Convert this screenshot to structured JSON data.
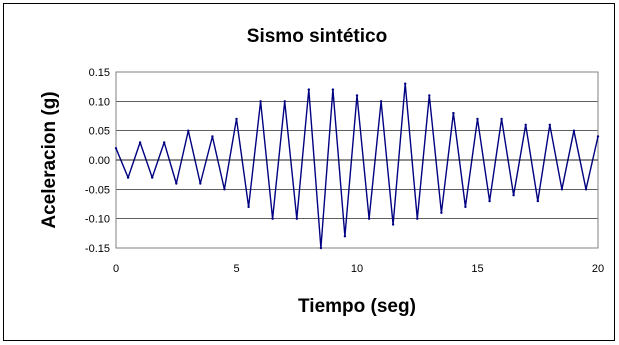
{
  "chart_data": {
    "type": "line",
    "title": "Sismo sintético",
    "xlabel": "Tiempo (seg)",
    "ylabel": "Aceleracion (g)",
    "xlim": [
      0,
      20
    ],
    "ylim": [
      -0.15,
      0.15
    ],
    "x_ticks": [
      "0",
      "5",
      "10",
      "15",
      "20"
    ],
    "y_ticks": [
      "0.15",
      "0.10",
      "0.05",
      "0.00",
      "-0.05",
      "-0.10",
      "-0.15"
    ],
    "grid": "horizontal",
    "legend": "none",
    "series": [
      {
        "color": "#000080",
        "x": [
          0,
          0.5,
          1,
          1.5,
          2,
          2.5,
          3,
          3.5,
          4,
          4.5,
          5,
          5.5,
          6,
          6.5,
          7,
          7.5,
          8,
          8.5,
          9,
          9.5,
          10,
          10.5,
          11,
          11.5,
          12,
          12.5,
          13,
          13.5,
          14,
          14.5,
          15,
          15.5,
          16,
          16.5,
          17,
          17.5,
          18,
          18.5,
          19,
          19.5,
          20
        ],
        "y": [
          0.02,
          -0.03,
          0.03,
          -0.03,
          0.03,
          -0.04,
          0.05,
          -0.04,
          0.04,
          -0.05,
          0.07,
          -0.08,
          0.1,
          -0.1,
          0.1,
          -0.1,
          0.12,
          -0.15,
          0.12,
          -0.13,
          0.11,
          -0.1,
          0.1,
          -0.11,
          0.13,
          -0.1,
          0.11,
          -0.09,
          0.08,
          -0.08,
          0.07,
          -0.07,
          0.07,
          -0.06,
          0.06,
          -0.07,
          0.06,
          -0.05,
          0.05,
          -0.05,
          0.04
        ]
      }
    ]
  }
}
